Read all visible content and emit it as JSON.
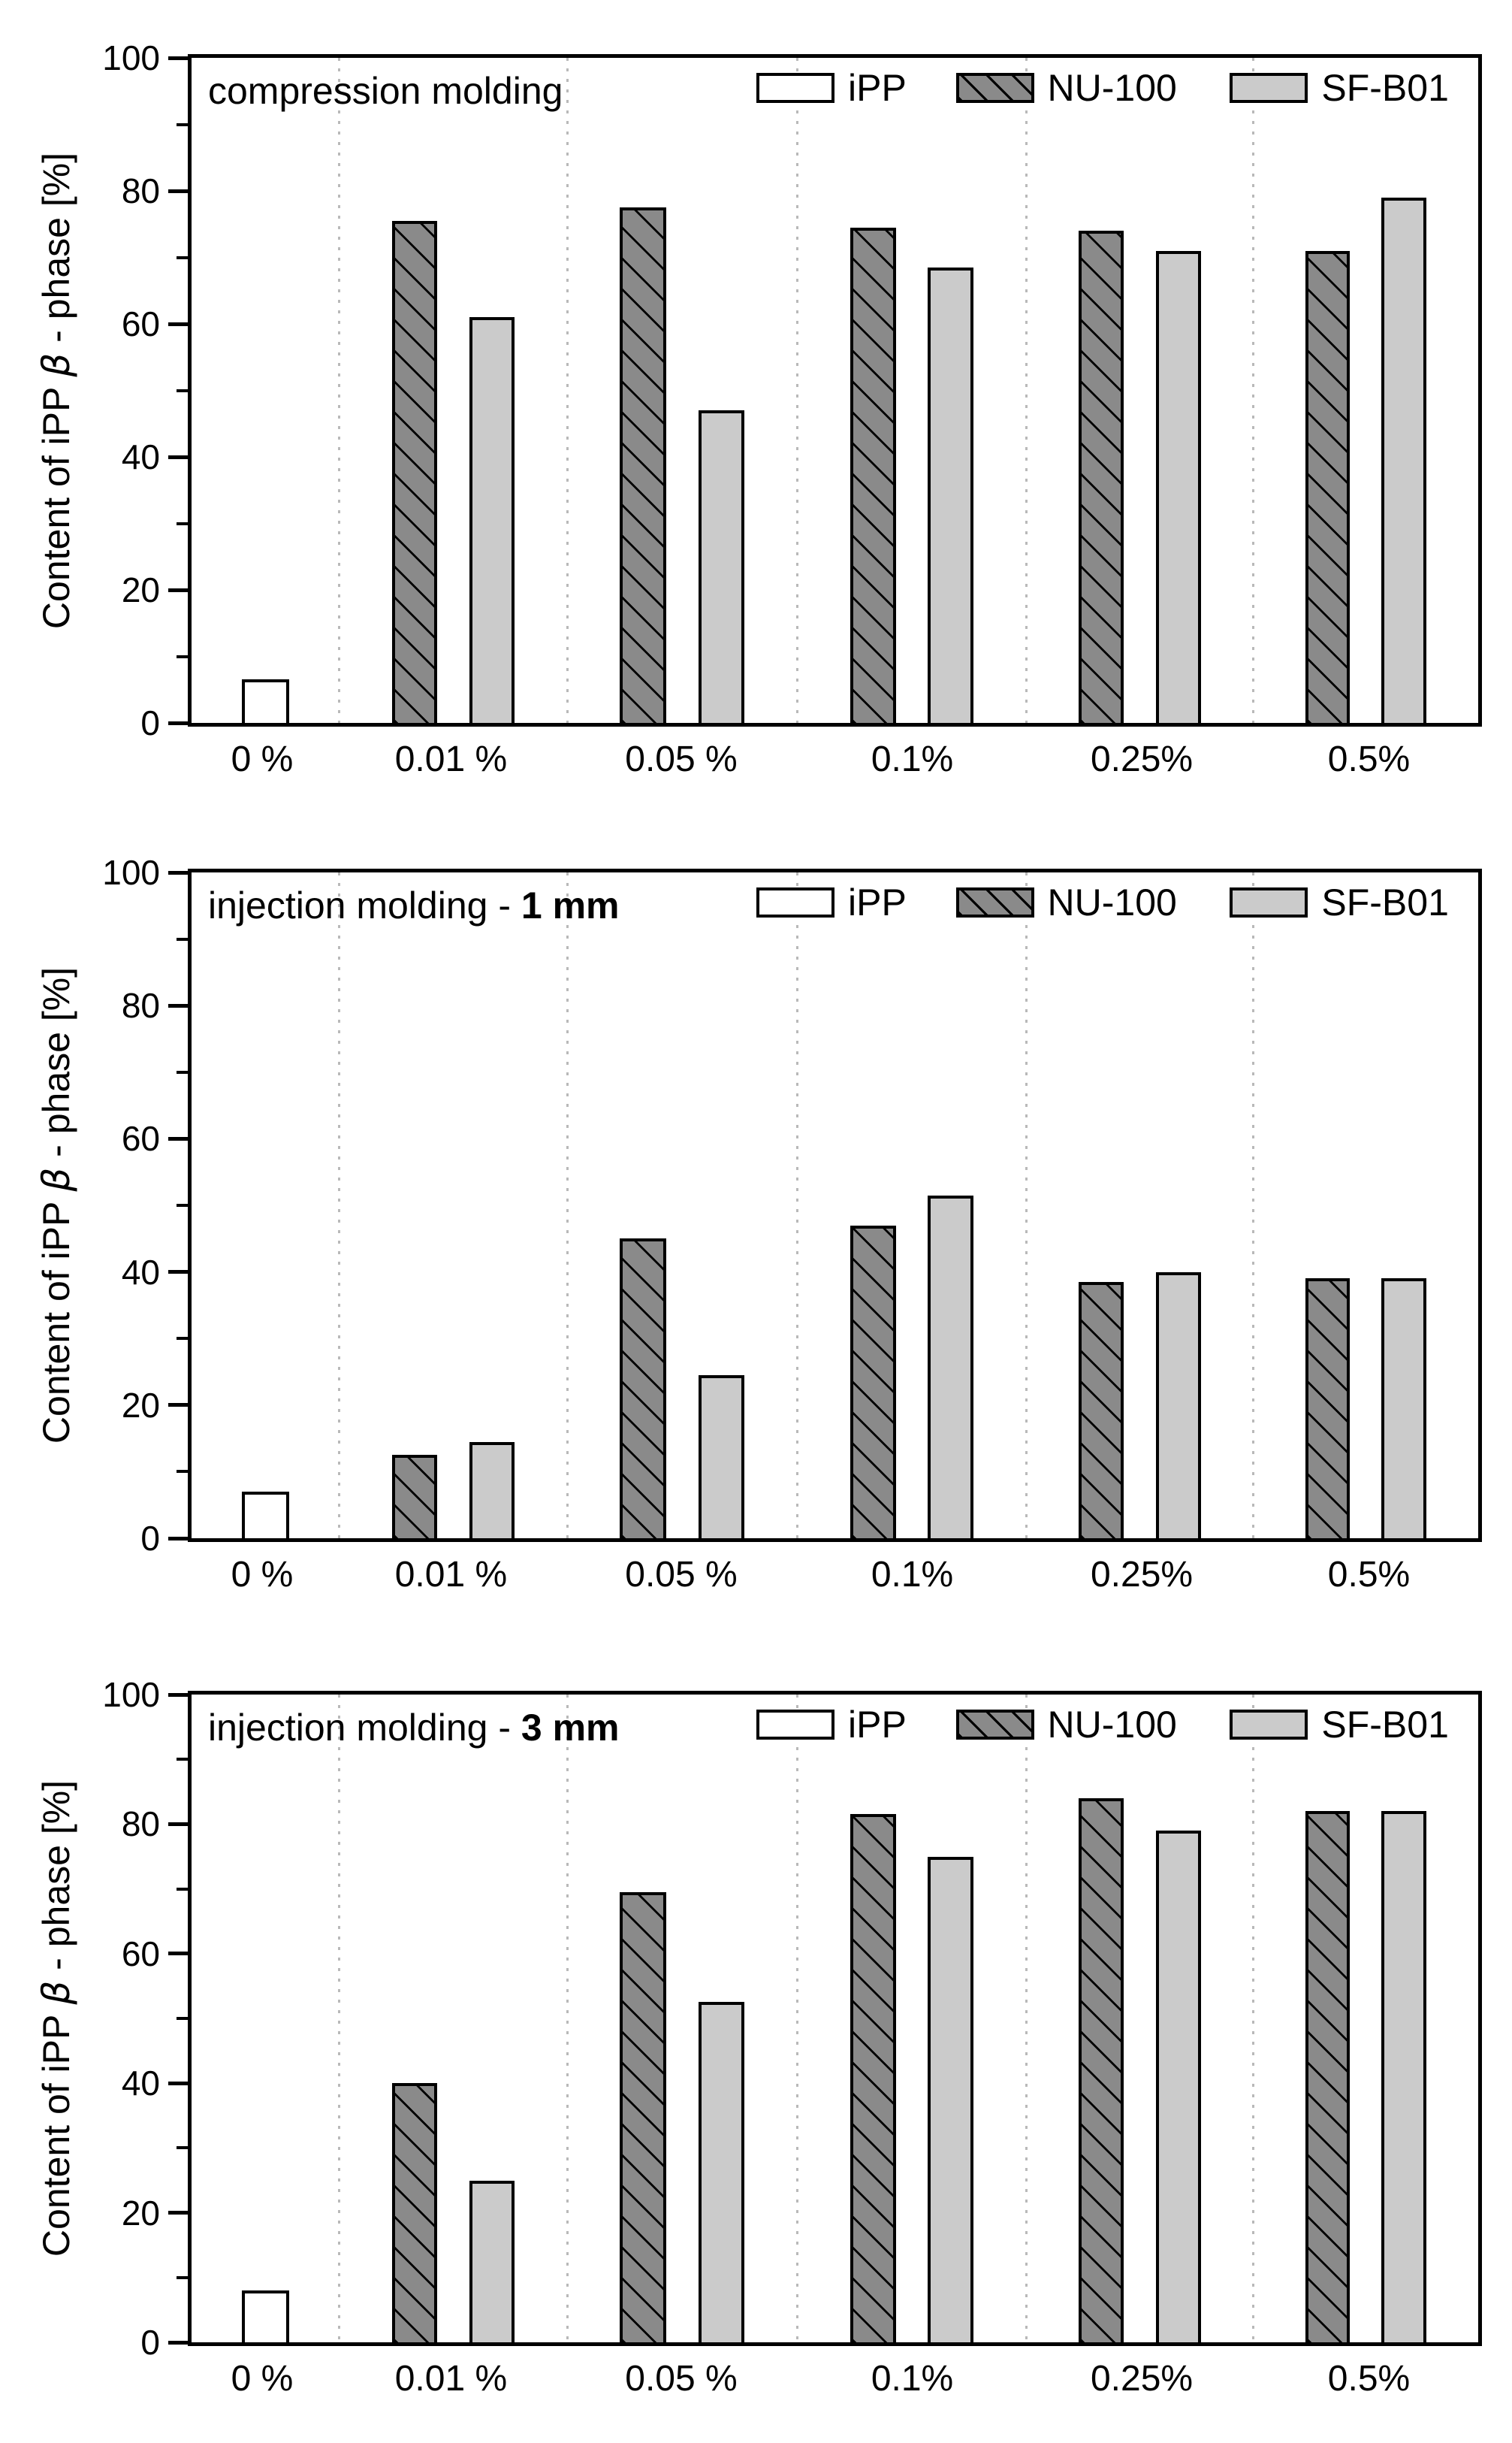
{
  "figure": {
    "y_axis_title": {
      "pre": "Content of iPP ",
      "beta": "β",
      "post": " - phase [%]"
    },
    "y_ticks": [
      "0",
      "20",
      "40",
      "60",
      "80",
      "100"
    ],
    "legend": [
      {
        "name": "iPP",
        "swatch": "ipp"
      },
      {
        "name": "NU-100",
        "swatch": "nu100"
      },
      {
        "name": "SF-B01",
        "swatch": "sfb01"
      }
    ],
    "colors": {
      "ipp_fill": "#ffffff",
      "nu100_fill": "#8a8a8a",
      "sfb01_fill": "#cbcbcb",
      "hatch": "#000000",
      "gridline": "#b9b9b9",
      "axis": "#000000"
    }
  },
  "chart_data": [
    {
      "type": "bar",
      "title": "compression molding",
      "title_bold": "",
      "categories": [
        "0 %",
        "0.01 %",
        "0.05 %",
        "0.1%",
        "0.25%",
        "0.5%"
      ],
      "series": [
        {
          "name": "iPP",
          "key": "ipp",
          "values": [
            6.5,
            null,
            null,
            null,
            null,
            null
          ]
        },
        {
          "name": "NU-100",
          "key": "nu100",
          "values": [
            null,
            75.5,
            77.5,
            74.5,
            74,
            71
          ]
        },
        {
          "name": "SF-B01",
          "key": "sfb01",
          "values": [
            null,
            61,
            47,
            68.5,
            71,
            79
          ]
        }
      ],
      "xlabel": "",
      "ylabel": "Content of iPP β - phase [%]",
      "ylim": [
        0,
        100
      ],
      "grid": "vertical-dotted-category-boundaries",
      "legend_position": "top-inside"
    },
    {
      "type": "bar",
      "title": "injection molding - ",
      "title_bold": "1 mm",
      "categories": [
        "0 %",
        "0.01 %",
        "0.05 %",
        "0.1%",
        "0.25%",
        "0.5%"
      ],
      "series": [
        {
          "name": "iPP",
          "key": "ipp",
          "values": [
            7,
            null,
            null,
            null,
            null,
            null
          ]
        },
        {
          "name": "NU-100",
          "key": "nu100",
          "values": [
            null,
            12.5,
            45,
            47,
            38.5,
            39
          ]
        },
        {
          "name": "SF-B01",
          "key": "sfb01",
          "values": [
            null,
            14.5,
            24.5,
            51.5,
            40,
            39
          ]
        }
      ],
      "xlabel": "",
      "ylabel": "Content of iPP β - phase [%]",
      "ylim": [
        0,
        100
      ],
      "grid": "vertical-dotted-category-boundaries",
      "legend_position": "top-inside"
    },
    {
      "type": "bar",
      "title": "injection molding - ",
      "title_bold": "3 mm",
      "categories": [
        "0 %",
        "0.01 %",
        "0.05 %",
        "0.1%",
        "0.25%",
        "0.5%"
      ],
      "series": [
        {
          "name": "iPP",
          "key": "ipp",
          "values": [
            8,
            null,
            null,
            null,
            null,
            null
          ]
        },
        {
          "name": "NU-100",
          "key": "nu100",
          "values": [
            null,
            40,
            69.5,
            81.5,
            84,
            82
          ]
        },
        {
          "name": "SF-B01",
          "key": "sfb01",
          "values": [
            null,
            25,
            52.5,
            75,
            79,
            82
          ]
        }
      ],
      "xlabel": "",
      "ylabel": "Content of iPP β - phase [%]",
      "ylim": [
        0,
        100
      ],
      "grid": "vertical-dotted-category-boundaries",
      "legend_position": "top-inside"
    }
  ]
}
